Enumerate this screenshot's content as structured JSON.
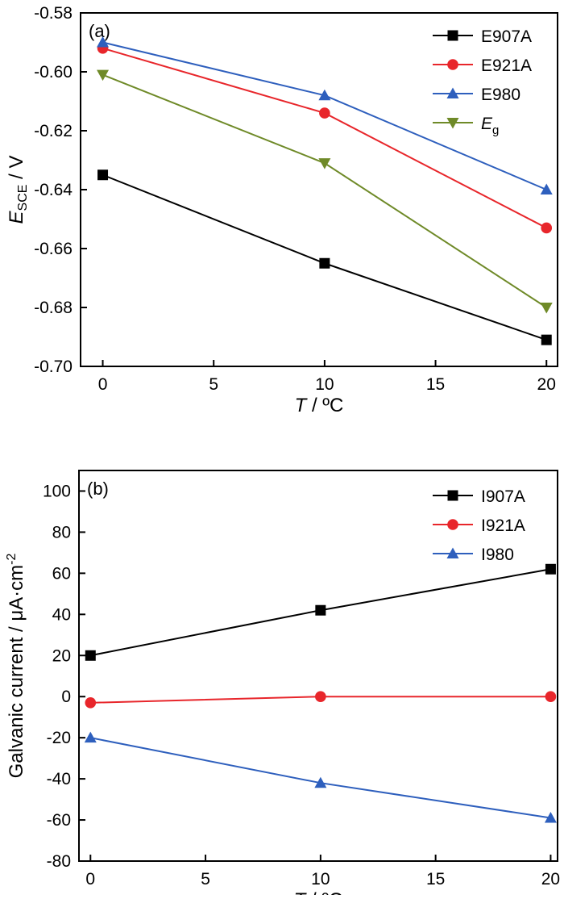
{
  "chart_data": [
    {
      "type": "line",
      "panel_label": "(a)",
      "x": [
        0,
        10,
        20
      ],
      "xlim": [
        -1,
        20.5
      ],
      "xticks": [
        0,
        5,
        10,
        15,
        20
      ],
      "ylim": [
        -0.7,
        -0.58
      ],
      "yticks": [
        -0.7,
        -0.68,
        -0.66,
        -0.64,
        -0.62,
        -0.6,
        -0.58
      ],
      "ytick_labels": [
        "-0.70",
        "-0.68",
        "-0.66",
        "-0.64",
        "-0.62",
        "-0.60",
        "-0.58"
      ],
      "xlabel": {
        "var": "T",
        "rest": " / ºC"
      },
      "ylabel": {
        "var": "E",
        "sub": "SCE",
        "rest": " / V"
      },
      "legend_position": "top-right",
      "series": [
        {
          "name": "E907A",
          "color": "#000000",
          "marker": "square",
          "values": [
            -0.635,
            -0.665,
            -0.691
          ]
        },
        {
          "name": "E921A",
          "color": "#e8262b",
          "marker": "circle",
          "values": [
            -0.592,
            -0.614,
            -0.653
          ]
        },
        {
          "name": "E980",
          "color": "#2e5fbd",
          "marker": "triangle-up",
          "values": [
            -0.59,
            -0.608,
            -0.64
          ]
        },
        {
          "name": "Eg",
          "label_main": "E",
          "label_sub": "g",
          "color": "#6f8a28",
          "marker": "triangle-down",
          "values": [
            -0.601,
            -0.631,
            -0.68
          ]
        }
      ]
    },
    {
      "type": "line",
      "panel_label": "(b)",
      "x": [
        0,
        10,
        20
      ],
      "xlim": [
        -0.5,
        20.3
      ],
      "xticks": [
        0,
        5,
        10,
        15,
        20
      ],
      "ylim": [
        -80,
        110
      ],
      "yticks": [
        -80,
        -60,
        -40,
        -20,
        0,
        20,
        40,
        60,
        80,
        100
      ],
      "ytick_labels": [
        "-80",
        "-60",
        "-40",
        "-20",
        "0",
        "20",
        "40",
        "60",
        "80",
        "100"
      ],
      "xlabel": {
        "var": "T",
        "rest": " / ºC"
      },
      "ylabel": {
        "text": "Galvanic current / μA·cm",
        "sup": "-2"
      },
      "legend_position": "top-right",
      "series": [
        {
          "name": "I907A",
          "color": "#000000",
          "marker": "square",
          "values": [
            20,
            42,
            62
          ]
        },
        {
          "name": "I921A",
          "color": "#e8262b",
          "marker": "circle",
          "values": [
            -3,
            0,
            0
          ]
        },
        {
          "name": "I980",
          "color": "#2e5fbd",
          "marker": "triangle-up",
          "values": [
            -20,
            -42,
            -59
          ]
        }
      ]
    }
  ]
}
